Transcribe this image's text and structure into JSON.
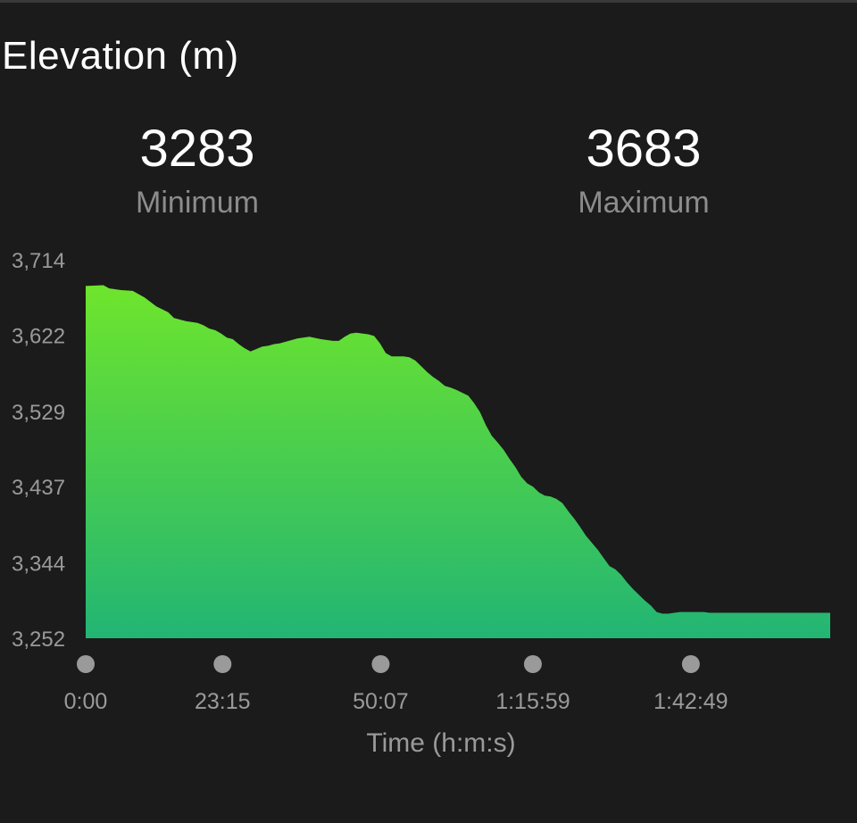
{
  "header": {
    "title": "Elevation (m)"
  },
  "stats": {
    "minimum_value": "3283",
    "minimum_label": "Minimum",
    "maximum_value": "3683",
    "maximum_label": "Maximum"
  },
  "colors": {
    "background": "#1b1b1b",
    "fill_top": "#6ee52c",
    "fill_bottom": "#22b574",
    "text_primary": "#ffffff",
    "text_secondary": "#9a9a9a",
    "tick_marker": "#9a9a9a"
  },
  "chart_data": {
    "type": "area",
    "title": "Elevation (m)",
    "xlabel": "Time (h:m:s)",
    "ylabel": "",
    "ylim": [
      3252,
      3714
    ],
    "yticks": [
      "3,714",
      "3,622",
      "3,529",
      "3,437",
      "3,344",
      "3,252"
    ],
    "ytick_values": [
      3714,
      3622,
      3529,
      3437,
      3344,
      3252
    ],
    "xticks": [
      "0:00",
      "23:15",
      "50:07",
      "1:15:59",
      "1:42:49"
    ],
    "xtick_minutes": [
      0,
      23.25,
      50.12,
      75.98,
      102.82
    ],
    "xlim_minutes": [
      0,
      126.5
    ],
    "grid": false,
    "legend": "none",
    "series": [
      {
        "x_minutes": [
          0,
          3,
          4,
          6,
          8,
          10,
          12,
          14,
          15,
          17,
          19,
          20,
          21,
          22,
          23,
          24,
          25,
          26,
          27,
          28,
          29,
          30,
          31,
          32,
          33,
          34,
          36,
          38,
          40,
          42,
          43,
          44,
          45,
          46,
          47,
          48,
          49,
          50,
          51,
          52,
          53,
          54,
          55,
          56,
          57,
          58,
          59,
          60,
          61,
          62,
          63,
          65,
          66,
          67,
          68,
          69,
          70,
          71,
          72,
          73,
          74,
          75,
          76,
          77,
          78,
          79,
          80,
          81,
          82,
          83,
          84,
          85,
          87,
          88,
          89,
          90,
          91,
          92,
          93,
          94,
          95,
          96,
          97,
          98,
          99,
          100,
          101,
          102,
          103,
          104,
          105,
          106,
          107,
          108,
          109,
          110,
          111,
          112,
          113,
          114,
          115,
          116,
          117,
          118,
          119,
          120,
          121,
          122,
          123,
          124,
          125,
          126.5
        ],
        "values": [
          3682,
          3683,
          3679,
          3677,
          3676,
          3668,
          3657,
          3650,
          3643,
          3639,
          3637,
          3634,
          3630,
          3628,
          3624,
          3619,
          3617,
          3611,
          3606,
          3602,
          3605,
          3608,
          3609,
          3611,
          3612,
          3614,
          3618,
          3620,
          3617,
          3615,
          3615,
          3620,
          3624,
          3625,
          3624,
          3623,
          3621,
          3612,
          3600,
          3596,
          3596,
          3596,
          3595,
          3591,
          3584,
          3577,
          3571,
          3566,
          3560,
          3558,
          3555,
          3548,
          3539,
          3528,
          3512,
          3499,
          3491,
          3482,
          3471,
          3461,
          3449,
          3441,
          3437,
          3430,
          3426,
          3425,
          3422,
          3417,
          3407,
          3398,
          3388,
          3377,
          3360,
          3350,
          3340,
          3336,
          3329,
          3320,
          3312,
          3305,
          3298,
          3292,
          3284,
          3282,
          3282,
          3283,
          3284,
          3284,
          3284,
          3284,
          3284,
          3283,
          3283,
          3283,
          3283,
          3283,
          3283,
          3283,
          3283,
          3283,
          3283,
          3283,
          3283,
          3283,
          3283,
          3283,
          3283,
          3283,
          3283,
          3283,
          3283,
          3283
        ]
      }
    ]
  }
}
